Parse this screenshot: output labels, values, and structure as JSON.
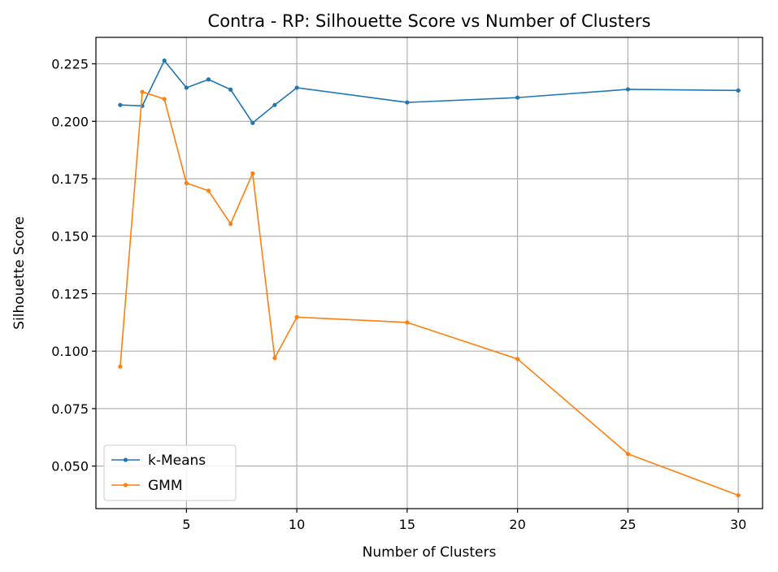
{
  "chart_data": {
    "type": "line",
    "title": "Contra - RP: Silhouette Score vs Number of Clusters",
    "xlabel": "Number of Clusters",
    "ylabel": "Silhouette Score",
    "xlim": [
      0.9,
      31.1
    ],
    "ylim": [
      0.0315,
      0.2365
    ],
    "xticks": [
      5,
      10,
      15,
      20,
      25,
      30
    ],
    "xtick_labels": [
      "5",
      "10",
      "15",
      "20",
      "25",
      "30"
    ],
    "yticks": [
      0.05,
      0.075,
      0.1,
      0.125,
      0.15,
      0.175,
      0.2,
      0.225
    ],
    "ytick_labels": [
      "0.050",
      "0.075",
      "0.100",
      "0.125",
      "0.150",
      "0.175",
      "0.200",
      "0.225"
    ],
    "grid": true,
    "legend_position": "lower-left",
    "x": [
      2,
      3,
      4,
      5,
      6,
      7,
      8,
      9,
      10,
      15,
      20,
      25,
      30
    ],
    "series": [
      {
        "name": "k-Means",
        "color": "#1f77b4",
        "values": [
          0.2071,
          0.2067,
          0.2264,
          0.2146,
          0.2182,
          0.2138,
          0.1993,
          0.2071,
          0.2146,
          0.2082,
          0.2103,
          0.2139,
          0.2134
        ]
      },
      {
        "name": "GMM",
        "color": "#ff7f0e",
        "values": [
          0.0933,
          0.2128,
          0.2097,
          0.1731,
          0.1698,
          0.1554,
          0.1773,
          0.097,
          0.1148,
          0.1125,
          0.0966,
          0.0553,
          0.0373
        ]
      }
    ]
  }
}
